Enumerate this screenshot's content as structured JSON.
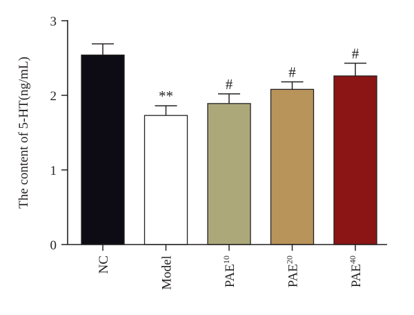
{
  "chart_data": {
    "type": "bar",
    "title": "",
    "xlabel": "",
    "ylabel": "The content of 5-HT(ng/mL)",
    "ylim": [
      0,
      3
    ],
    "yticks": [
      0,
      1,
      2,
      3
    ],
    "grid": false,
    "categories": [
      {
        "base": "NC",
        "sup": ""
      },
      {
        "base": "Model",
        "sup": ""
      },
      {
        "base": "PAE",
        "sup": "10"
      },
      {
        "base": "PAE",
        "sup": "20"
      },
      {
        "base": "PAE",
        "sup": "40"
      }
    ],
    "values": [
      2.54,
      1.73,
      1.89,
      2.08,
      2.26
    ],
    "errors": [
      0.15,
      0.13,
      0.13,
      0.1,
      0.17
    ],
    "annotations": [
      "",
      "**",
      "#",
      "#",
      "#"
    ],
    "colors": [
      "#0d0b14",
      "#ffffff",
      "#aca87a",
      "#b8935a",
      "#8b1515"
    ]
  }
}
